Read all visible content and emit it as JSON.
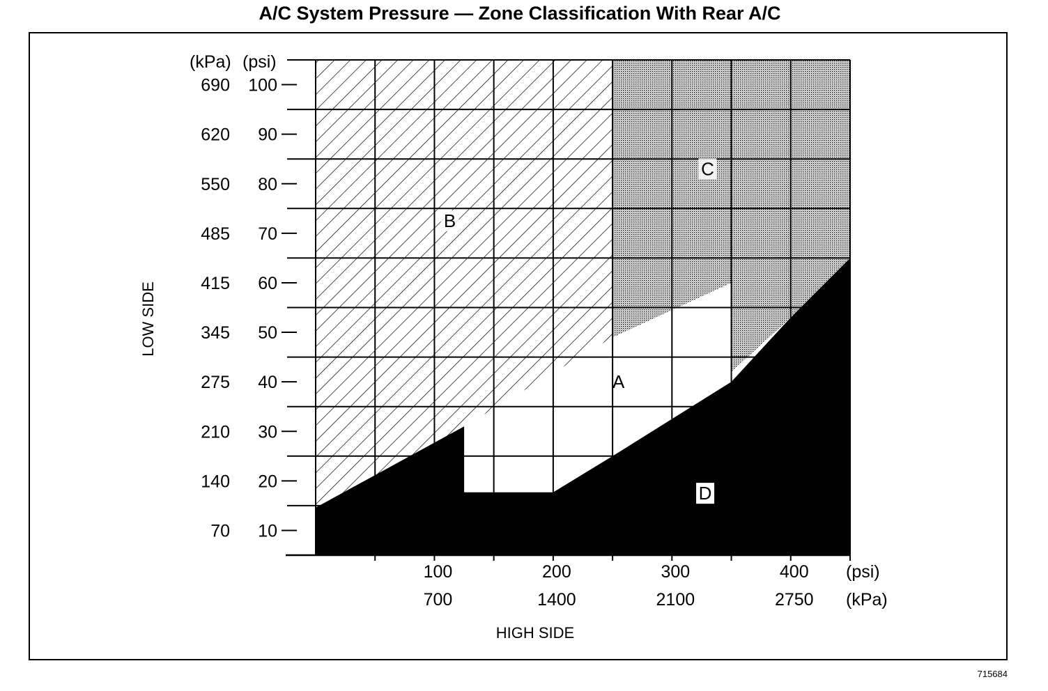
{
  "title": "A/C System Pressure — Zone Classification With Rear A/C",
  "figure_id": "715684",
  "chart_data": {
    "type": "area",
    "title": "A/C System Pressure — Zone Classification With Rear A/C",
    "xlabel": "HIGH SIDE",
    "ylabel": "LOW SIDE",
    "x_units": [
      "(psi)",
      "(kPa)"
    ],
    "y_units": [
      "(kPa)",
      "(psi)"
    ],
    "xlim": [
      0,
      450
    ],
    "ylim": [
      5,
      105
    ],
    "x_ticks_psi": [
      "100",
      "200",
      "300",
      "400"
    ],
    "x_ticks_kpa": [
      "700",
      "1400",
      "2100",
      "2750"
    ],
    "y_ticks_psi": [
      "10",
      "20",
      "30",
      "40",
      "50",
      "60",
      "70",
      "80",
      "90",
      "100"
    ],
    "y_ticks_kpa": [
      "70",
      "140",
      "210",
      "275",
      "345",
      "415",
      "485",
      "550",
      "620",
      "690"
    ],
    "grid": true,
    "zones": [
      {
        "label": "A",
        "fill": "white",
        "points": [
          [
            125,
            30
          ],
          [
            125,
            17.7
          ],
          [
            200,
            17.7
          ],
          [
            250,
            25
          ],
          [
            350,
            40
          ],
          [
            350,
            60
          ],
          [
            250,
            49
          ],
          [
            125,
            32.3
          ]
        ]
      },
      {
        "label": "B",
        "fill": "diagonal hatch",
        "points": [
          [
            0,
            105
          ],
          [
            250,
            105
          ],
          [
            250,
            49
          ],
          [
            0,
            13
          ]
        ]
      },
      {
        "label": "C",
        "fill": "stipple",
        "points": [
          [
            250,
            105
          ],
          [
            450,
            105
          ],
          [
            450,
            65
          ],
          [
            400,
            53
          ],
          [
            350,
            42
          ],
          [
            350,
            60
          ],
          [
            250,
            49
          ]
        ]
      },
      {
        "label": "D",
        "fill": "solid black",
        "points": [
          [
            0,
            5
          ],
          [
            450,
            5
          ],
          [
            450,
            65
          ],
          [
            400,
            53
          ],
          [
            350,
            40
          ],
          [
            250,
            25
          ],
          [
            200,
            17.7
          ],
          [
            125,
            17.7
          ],
          [
            125,
            31
          ],
          [
            0,
            14.6
          ]
        ]
      }
    ]
  }
}
